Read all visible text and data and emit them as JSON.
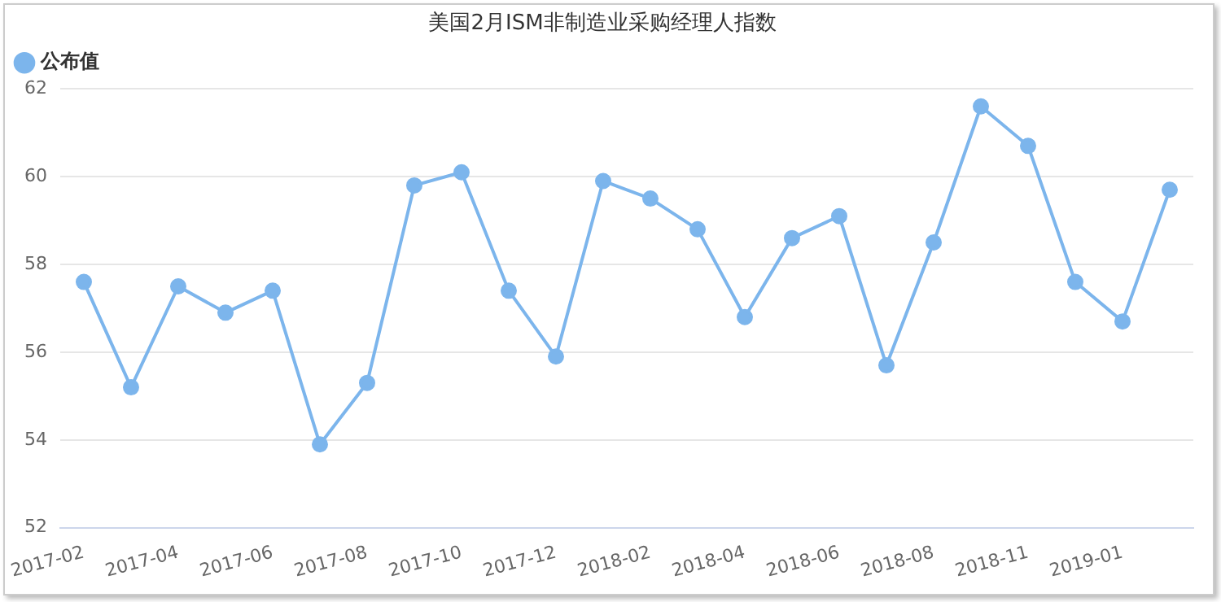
{
  "chart_data": {
    "type": "line",
    "title": "美国2月ISM非制造业采购经理人指数",
    "categories": [
      "2017-02",
      null,
      "2017-04",
      null,
      "2017-06",
      null,
      "2017-08",
      null,
      "2017-10",
      null,
      "2017-12",
      null,
      "2018-02",
      null,
      "2018-04",
      null,
      "2018-06",
      null,
      "2018-08",
      null,
      "2018-11",
      null,
      "2019-01",
      null
    ],
    "series": [
      {
        "name": "公布值",
        "color": "#7cb5ec",
        "values": [
          57.6,
          55.2,
          57.5,
          56.9,
          57.4,
          53.9,
          55.3,
          59.8,
          60.1,
          57.4,
          55.9,
          59.9,
          59.5,
          58.8,
          56.8,
          58.6,
          59.1,
          55.7,
          58.5,
          61.6,
          60.7,
          57.6,
          56.7,
          59.7
        ]
      }
    ],
    "ylim": [
      52,
      62
    ],
    "yticks": [
      52,
      54,
      56,
      58,
      60,
      62
    ],
    "grid": "y",
    "legend": "top left",
    "marker": "circle",
    "line_style": "solid"
  }
}
